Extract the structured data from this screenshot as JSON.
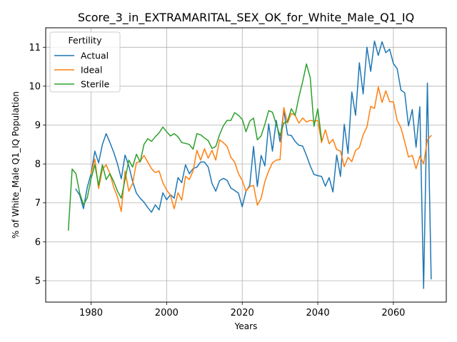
{
  "chart_data": {
    "type": "line",
    "title": "Score_3_in_EXTRAMARITAL_SEX_OK_for_White_Male_Q1_IQ",
    "xlabel": "Years",
    "ylabel": "% of White_Male Q1_IQ Population",
    "xlim": [
      1968,
      2074
    ],
    "ylim": [
      4.45,
      11.5
    ],
    "xticks": [
      1980,
      2000,
      2020,
      2040,
      2060
    ],
    "yticks": [
      5,
      6,
      7,
      8,
      9,
      10,
      11
    ],
    "grid": true,
    "legend": {
      "title": "Fertility",
      "placement": "top-left"
    },
    "series": [
      {
        "name": "Actual",
        "color": "#1f77b4",
        "points": [
          [
            1976,
            7.35
          ],
          [
            1977,
            7.2
          ],
          [
            1978,
            6.85
          ],
          [
            1979,
            7.4
          ],
          [
            1980,
            7.75
          ],
          [
            1981,
            8.33
          ],
          [
            1982,
            8.03
          ],
          [
            1983,
            8.5
          ],
          [
            1984,
            8.78
          ],
          [
            1985,
            8.55
          ],
          [
            1986,
            8.3
          ],
          [
            1987,
            8.0
          ],
          [
            1988,
            7.62
          ],
          [
            1989,
            8.23
          ],
          [
            1990,
            7.95
          ],
          [
            1991,
            7.55
          ],
          [
            1992,
            7.25
          ],
          [
            1993,
            7.12
          ],
          [
            1994,
            7.02
          ],
          [
            1995,
            6.88
          ],
          [
            1996,
            6.76
          ],
          [
            1997,
            6.95
          ],
          [
            1998,
            6.82
          ],
          [
            1999,
            7.26
          ],
          [
            2000,
            7.08
          ],
          [
            2001,
            7.21
          ],
          [
            2002,
            7.12
          ],
          [
            2003,
            7.65
          ],
          [
            2004,
            7.52
          ],
          [
            2005,
            7.98
          ],
          [
            2006,
            7.75
          ],
          [
            2007,
            7.88
          ],
          [
            2008,
            7.92
          ],
          [
            2009,
            8.05
          ],
          [
            2010,
            8.05
          ],
          [
            2011,
            7.92
          ],
          [
            2012,
            7.5
          ],
          [
            2013,
            7.3
          ],
          [
            2014,
            7.57
          ],
          [
            2015,
            7.63
          ],
          [
            2016,
            7.58
          ],
          [
            2017,
            7.38
          ],
          [
            2018,
            7.32
          ],
          [
            2019,
            7.25
          ],
          [
            2020,
            6.9
          ],
          [
            2021,
            7.3
          ],
          [
            2022,
            7.45
          ],
          [
            2023,
            8.45
          ],
          [
            2024,
            7.42
          ],
          [
            2025,
            8.22
          ],
          [
            2026,
            7.95
          ],
          [
            2027,
            9.03
          ],
          [
            2028,
            8.33
          ],
          [
            2029,
            9.12
          ],
          [
            2030,
            8.57
          ],
          [
            2031,
            9.38
          ],
          [
            2032,
            8.75
          ],
          [
            2033,
            8.73
          ],
          [
            2034,
            8.58
          ],
          [
            2035,
            8.48
          ],
          [
            2036,
            8.46
          ],
          [
            2037,
            8.22
          ],
          [
            2038,
            7.95
          ],
          [
            2039,
            7.73
          ],
          [
            2040,
            7.7
          ],
          [
            2041,
            7.68
          ],
          [
            2042,
            7.43
          ],
          [
            2043,
            7.65
          ],
          [
            2044,
            7.28
          ],
          [
            2045,
            8.23
          ],
          [
            2046,
            7.68
          ],
          [
            2047,
            9.02
          ],
          [
            2048,
            8.27
          ],
          [
            2049,
            9.85
          ],
          [
            2050,
            9.25
          ],
          [
            2051,
            10.6
          ],
          [
            2052,
            9.8
          ],
          [
            2053,
            11.0
          ],
          [
            2054,
            10.38
          ],
          [
            2055,
            11.16
          ],
          [
            2056,
            10.79
          ],
          [
            2057,
            11.14
          ],
          [
            2058,
            10.86
          ],
          [
            2059,
            10.95
          ],
          [
            2060,
            10.58
          ],
          [
            2061,
            10.45
          ],
          [
            2062,
            9.9
          ],
          [
            2063,
            9.83
          ],
          [
            2064,
            8.98
          ],
          [
            2065,
            9.4
          ],
          [
            2066,
            8.43
          ],
          [
            2067,
            9.47
          ],
          [
            2068,
            4.8
          ],
          [
            2069,
            10.08
          ],
          [
            2070,
            5.05
          ]
        ]
      },
      {
        "name": "Ideal",
        "color": "#ff7f0e",
        "points": [
          [
            1980,
            7.75
          ],
          [
            1981,
            8.13
          ],
          [
            1982,
            7.37
          ],
          [
            1983,
            7.86
          ],
          [
            1984,
            7.98
          ],
          [
            1985,
            7.75
          ],
          [
            1986,
            7.4
          ],
          [
            1987,
            7.15
          ],
          [
            1988,
            6.78
          ],
          [
            1989,
            7.82
          ],
          [
            1990,
            7.3
          ],
          [
            1991,
            7.5
          ],
          [
            1992,
            8.03
          ],
          [
            1993,
            8.07
          ],
          [
            1994,
            8.22
          ],
          [
            1995,
            8.05
          ],
          [
            1996,
            7.88
          ],
          [
            1997,
            7.78
          ],
          [
            1998,
            7.82
          ],
          [
            1999,
            7.52
          ],
          [
            2000,
            7.33
          ],
          [
            2001,
            7.2
          ],
          [
            2002,
            6.85
          ],
          [
            2003,
            7.26
          ],
          [
            2004,
            7.07
          ],
          [
            2005,
            7.68
          ],
          [
            2006,
            7.6
          ],
          [
            2007,
            7.82
          ],
          [
            2008,
            8.35
          ],
          [
            2009,
            8.1
          ],
          [
            2010,
            8.39
          ],
          [
            2011,
            8.15
          ],
          [
            2012,
            8.35
          ],
          [
            2013,
            8.1
          ],
          [
            2014,
            8.62
          ],
          [
            2015,
            8.55
          ],
          [
            2016,
            8.45
          ],
          [
            2017,
            8.17
          ],
          [
            2018,
            8.05
          ],
          [
            2019,
            7.75
          ],
          [
            2020,
            7.58
          ],
          [
            2021,
            7.3
          ],
          [
            2022,
            7.42
          ],
          [
            2023,
            7.45
          ],
          [
            2024,
            6.94
          ],
          [
            2025,
            7.12
          ],
          [
            2026,
            7.55
          ],
          [
            2027,
            7.82
          ],
          [
            2028,
            8.03
          ],
          [
            2029,
            8.1
          ],
          [
            2030,
            8.11
          ],
          [
            2031,
            9.45
          ],
          [
            2032,
            9.05
          ],
          [
            2033,
            9.3
          ],
          [
            2034,
            9.25
          ],
          [
            2035,
            9.05
          ],
          [
            2036,
            9.18
          ],
          [
            2037,
            9.08
          ],
          [
            2038,
            9.12
          ],
          [
            2039,
            9.1
          ],
          [
            2040,
            9.12
          ],
          [
            2041,
            8.55
          ],
          [
            2042,
            8.88
          ],
          [
            2043,
            8.52
          ],
          [
            2044,
            8.63
          ],
          [
            2045,
            8.37
          ],
          [
            2046,
            8.33
          ],
          [
            2047,
            7.93
          ],
          [
            2048,
            8.17
          ],
          [
            2049,
            8.06
          ],
          [
            2050,
            8.35
          ],
          [
            2051,
            8.42
          ],
          [
            2052,
            8.75
          ],
          [
            2053,
            8.95
          ],
          [
            2054,
            9.48
          ],
          [
            2055,
            9.43
          ],
          [
            2056,
            9.98
          ],
          [
            2057,
            9.58
          ],
          [
            2058,
            9.88
          ],
          [
            2059,
            9.6
          ],
          [
            2060,
            9.6
          ],
          [
            2061,
            9.12
          ],
          [
            2062,
            8.93
          ],
          [
            2063,
            8.57
          ],
          [
            2064,
            8.18
          ],
          [
            2065,
            8.22
          ],
          [
            2066,
            7.88
          ],
          [
            2067,
            8.2
          ],
          [
            2068,
            8.0
          ],
          [
            2069,
            8.62
          ],
          [
            2070,
            8.73
          ]
        ]
      },
      {
        "name": "Sterile",
        "color": "#2ca02c",
        "points": [
          [
            1974,
            6.3
          ],
          [
            1975,
            7.87
          ],
          [
            1976,
            7.75
          ],
          [
            1977,
            7.25
          ],
          [
            1978,
            6.95
          ],
          [
            1979,
            7.13
          ],
          [
            1980,
            7.62
          ],
          [
            1981,
            7.98
          ],
          [
            1982,
            7.45
          ],
          [
            1983,
            7.98
          ],
          [
            1984,
            7.6
          ],
          [
            1985,
            7.75
          ],
          [
            1986,
            7.55
          ],
          [
            1987,
            7.3
          ],
          [
            1988,
            7.12
          ],
          [
            1989,
            7.6
          ],
          [
            1990,
            8.1
          ],
          [
            1991,
            7.92
          ],
          [
            1992,
            8.25
          ],
          [
            1993,
            8.05
          ],
          [
            1994,
            8.5
          ],
          [
            1995,
            8.65
          ],
          [
            1996,
            8.58
          ],
          [
            1997,
            8.7
          ],
          [
            1998,
            8.8
          ],
          [
            1999,
            8.95
          ],
          [
            2000,
            8.83
          ],
          [
            2001,
            8.72
          ],
          [
            2002,
            8.78
          ],
          [
            2003,
            8.7
          ],
          [
            2004,
            8.55
          ],
          [
            2005,
            8.53
          ],
          [
            2006,
            8.5
          ],
          [
            2007,
            8.38
          ],
          [
            2008,
            8.78
          ],
          [
            2009,
            8.75
          ],
          [
            2010,
            8.67
          ],
          [
            2011,
            8.6
          ],
          [
            2012,
            8.4
          ],
          [
            2013,
            8.45
          ],
          [
            2014,
            8.75
          ],
          [
            2015,
            8.98
          ],
          [
            2016,
            9.12
          ],
          [
            2017,
            9.12
          ],
          [
            2018,
            9.32
          ],
          [
            2019,
            9.25
          ],
          [
            2020,
            9.15
          ],
          [
            2021,
            8.83
          ],
          [
            2022,
            9.1
          ],
          [
            2023,
            9.18
          ],
          [
            2024,
            8.62
          ],
          [
            2025,
            8.72
          ],
          [
            2026,
            9.02
          ],
          [
            2027,
            9.37
          ],
          [
            2028,
            9.33
          ],
          [
            2029,
            9.02
          ],
          [
            2030,
            8.73
          ],
          [
            2031,
            9.05
          ],
          [
            2032,
            9.1
          ],
          [
            2033,
            9.42
          ],
          [
            2034,
            9.25
          ],
          [
            2035,
            9.72
          ],
          [
            2036,
            10.12
          ],
          [
            2037,
            10.57
          ],
          [
            2038,
            10.22
          ],
          [
            2039,
            8.97
          ],
          [
            2040,
            9.42
          ],
          [
            2041,
            8.62
          ]
        ]
      }
    ]
  }
}
